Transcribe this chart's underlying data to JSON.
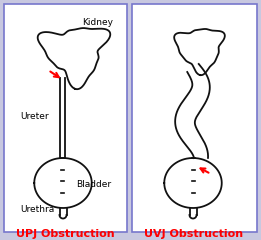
{
  "bg_color": "#c8c8e0",
  "panel_edge_color": "#7777cc",
  "outline_color": "#111111",
  "arrow_color": "#ff0000",
  "text_color": "#000000",
  "label_color": "#ff0000",
  "upj_label": "UPJ Obstruction",
  "uvj_label": "UVJ Obstruction",
  "kidney_label": "Kidney",
  "ureter_label": "Ureter",
  "bladder_label": "Bladder",
  "urethra_label": "Urethra",
  "label_fontsize": 6.5,
  "title_fontsize": 8.0
}
